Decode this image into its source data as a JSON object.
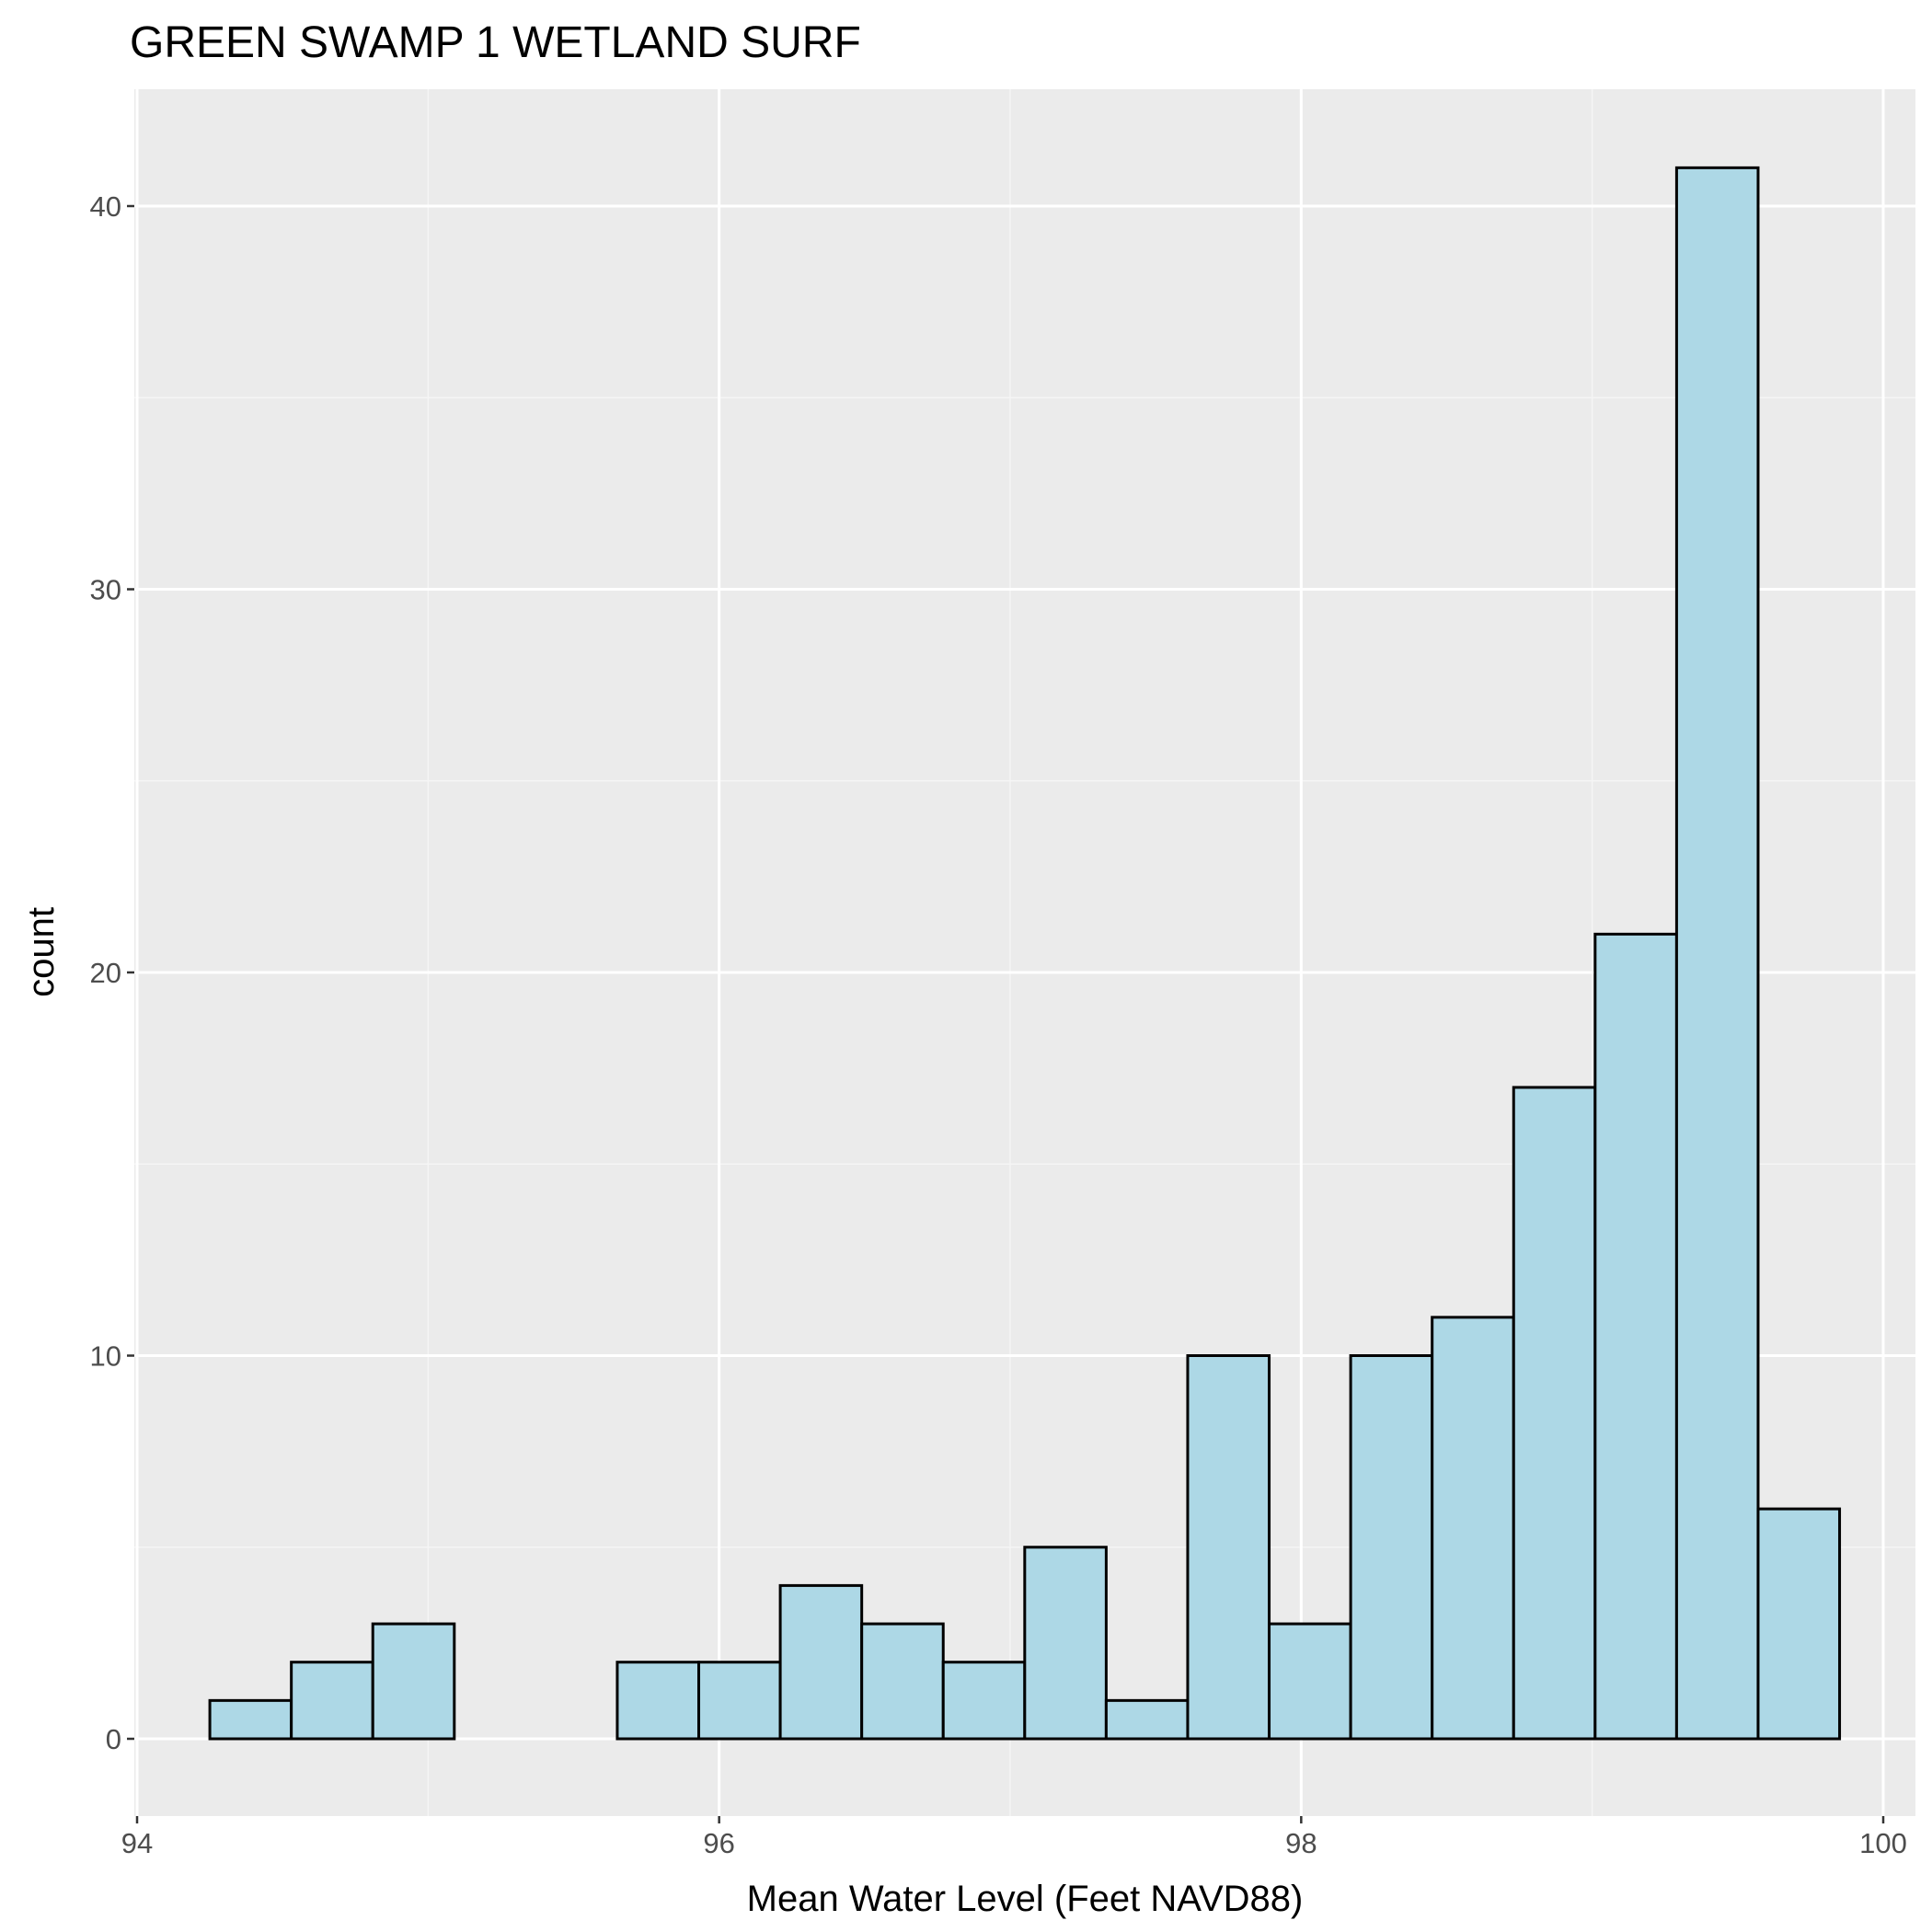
{
  "chart_data": {
    "type": "bar",
    "title": "GREEN SWAMP 1 WETLAND SURF",
    "xlabel": "Mean Water Level (Feet NAVD88)",
    "ylabel": "count",
    "xlim": [
      94,
      100
    ],
    "ylim": [
      0,
      43
    ],
    "x_ticks": [
      94,
      96,
      98,
      100
    ],
    "y_ticks": [
      0,
      10,
      20,
      30,
      40
    ],
    "grid": true,
    "legend": "none",
    "bin_width": 0.28,
    "bins": [
      {
        "x0": 94.25,
        "x1": 94.53,
        "count": 1
      },
      {
        "x0": 94.53,
        "x1": 94.81,
        "count": 2
      },
      {
        "x0": 94.81,
        "x1": 95.09,
        "count": 3
      },
      {
        "x0": 95.09,
        "x1": 95.37,
        "count": 0
      },
      {
        "x0": 95.37,
        "x1": 95.65,
        "count": 0
      },
      {
        "x0": 95.65,
        "x1": 95.93,
        "count": 2
      },
      {
        "x0": 95.93,
        "x1": 96.21,
        "count": 2
      },
      {
        "x0": 96.21,
        "x1": 96.49,
        "count": 4
      },
      {
        "x0": 96.49,
        "x1": 96.77,
        "count": 3
      },
      {
        "x0": 96.77,
        "x1": 97.05,
        "count": 2
      },
      {
        "x0": 97.05,
        "x1": 97.33,
        "count": 5
      },
      {
        "x0": 97.33,
        "x1": 97.61,
        "count": 1
      },
      {
        "x0": 97.61,
        "x1": 97.89,
        "count": 10
      },
      {
        "x0": 97.89,
        "x1": 98.17,
        "count": 3
      },
      {
        "x0": 98.17,
        "x1": 98.45,
        "count": 10
      },
      {
        "x0": 98.45,
        "x1": 98.73,
        "count": 11
      },
      {
        "x0": 98.73,
        "x1": 99.01,
        "count": 17
      },
      {
        "x0": 99.01,
        "x1": 99.29,
        "count": 21
      },
      {
        "x0": 99.29,
        "x1": 99.57,
        "count": 41
      },
      {
        "x0": 99.57,
        "x1": 99.85,
        "count": 6
      }
    ],
    "colors": {
      "bar_fill": "#add8e6",
      "bar_stroke": "#000000",
      "panel_background": "#ebebeb",
      "grid_major": "#ffffff",
      "grid_minor": "#f5f5f5"
    }
  }
}
